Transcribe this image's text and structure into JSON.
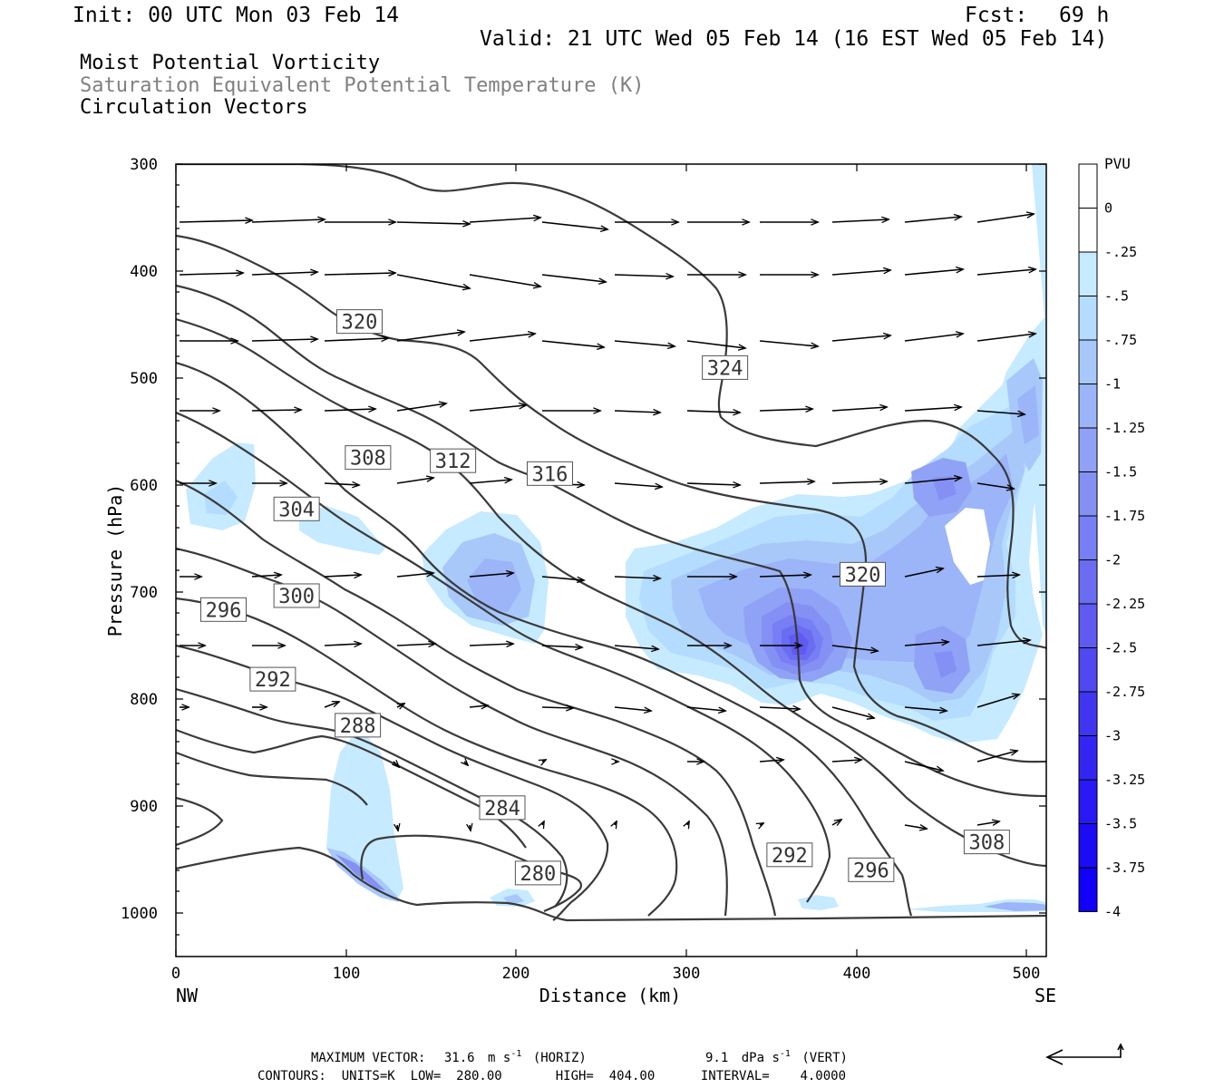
{
  "header": {
    "init": "Init: 00 UTC Mon 03 Feb 14",
    "fcst_label": "Fcst:",
    "fcst_value": "69 h",
    "valid": "Valid: 21 UTC Wed 05 Feb 14 (16 EST Wed 05 Feb 14)"
  },
  "titles": {
    "line1": "Moist Potential Vorticity",
    "line2": "Saturation Equivalent Potential Temperature (K)",
    "line3": "Circulation Vectors",
    "line2_color": "#808080"
  },
  "axes": {
    "ylabel": "Pressure (hPa)",
    "xlabel": "Distance (km)",
    "y_ticks": [
      "300",
      "400",
      "500",
      "600",
      "700",
      "800",
      "900",
      "1000"
    ],
    "x_ticks": [
      "0",
      "100",
      "200",
      "300",
      "400",
      "500"
    ],
    "x_left_label": "NW",
    "x_right_label": "SE"
  },
  "colorbar": {
    "unit": "PVU",
    "labels": [
      "0",
      "-.25",
      "-.5",
      "-.75",
      "-1",
      "-1.25",
      "-1.5",
      "-1.75",
      "-2",
      "-2.25",
      "-2.5",
      "-2.75",
      "-3",
      "-3.25",
      "-3.5",
      "-3.75",
      "-4"
    ],
    "colors": [
      "#ffffff",
      "#ffffff",
      "#c6eaff",
      "#b4dcfe",
      "#a8c8fa",
      "#9cb4f8",
      "#90a2f6",
      "#8490f4",
      "#787ef4",
      "#6a6cf2",
      "#5e5af2",
      "#5048f0",
      "#4036f2",
      "#3426f2",
      "#2818f4",
      "#1c0cf6",
      "#1000f8"
    ]
  },
  "footer": {
    "max_vector_label": "MAXIMUM VECTOR:",
    "horiz_value": "31.6",
    "horiz_unit": "m s",
    "horiz_exp": "-1",
    "horiz_tag": "(HORIZ)",
    "vert_value": "9.1",
    "vert_unit": "dPa s",
    "vert_exp": "-1",
    "vert_tag": "(VERT)",
    "contours_line": "CONTOURS:  UNITS=K  LOW=  280.00       HIGH=  404.00      INTERVAL=    4.0000"
  },
  "chart_data": {
    "type": "contour",
    "x_range_km": [
      0,
      512
    ],
    "y_range_hpa": [
      300,
      1040
    ],
    "y_scale": "linear (pressure increasing downward)",
    "contour_labels": [
      {
        "value": "320",
        "km": 108,
        "hpa": 447
      },
      {
        "value": "324",
        "km": 323,
        "hpa": 490
      },
      {
        "value": "308",
        "km": 113,
        "hpa": 574
      },
      {
        "value": "312",
        "km": 163,
        "hpa": 577
      },
      {
        "value": "316",
        "km": 220,
        "hpa": 589
      },
      {
        "value": "304",
        "km": 71,
        "hpa": 622
      },
      {
        "value": "320",
        "km": 404,
        "hpa": 683
      },
      {
        "value": "300",
        "km": 71,
        "hpa": 703
      },
      {
        "value": "296",
        "km": 28,
        "hpa": 716
      },
      {
        "value": "292",
        "km": 57,
        "hpa": 781
      },
      {
        "value": "288",
        "km": 107,
        "hpa": 824
      },
      {
        "value": "284",
        "km": 192,
        "hpa": 901
      },
      {
        "value": "292",
        "km": 361,
        "hpa": 945
      },
      {
        "value": "308",
        "km": 477,
        "hpa": 933
      },
      {
        "value": "280",
        "km": 213,
        "hpa": 962
      },
      {
        "value": "296",
        "km": 409,
        "hpa": 959
      }
    ],
    "contour_units": "K",
    "contour_low": 280.0,
    "contour_high": 404.0,
    "contour_interval": 4.0,
    "pv_shading_unit": "PVU",
    "pv_minimum_approx": -2.9,
    "pv_minimum_location": {
      "km": 370,
      "hpa": 720
    }
  }
}
